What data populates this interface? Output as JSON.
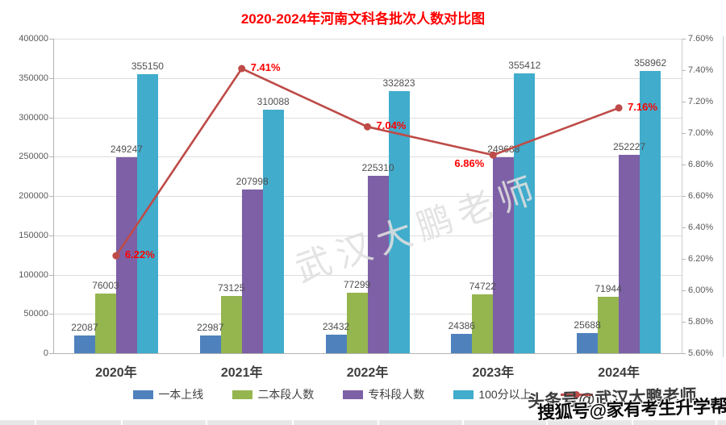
{
  "title": {
    "text": "2020-2024年河南文科各批次人数对比图",
    "color": "#ff0000"
  },
  "watermarks": {
    "center": "武汉大鹏老师",
    "overlay_top": "头条号@武汉大鹏老师",
    "overlay_bottom": "搜狐号@家有考生升学帮"
  },
  "chart_data": {
    "type": "bar",
    "subtype": "grouped-bars-with-line",
    "title": "2020-2024年河南文科各批次人数对比图",
    "categories": [
      "2020年",
      "2021年",
      "2022年",
      "2023年",
      "2024年"
    ],
    "series": [
      {
        "name": "一本上线",
        "type": "bar",
        "color": "#4f81bd",
        "axis": "left",
        "values": [
          22087,
          22987,
          23432,
          24386,
          25688
        ]
      },
      {
        "name": "二本段人数",
        "type": "bar",
        "color": "#95b54f",
        "axis": "left",
        "values": [
          76003,
          73125,
          77299,
          74722,
          71944
        ]
      },
      {
        "name": "专科段人数",
        "type": "bar",
        "color": "#7d60a6",
        "axis": "left",
        "values": [
          249247,
          207998,
          225310,
          249688,
          252227
        ]
      },
      {
        "name": "100分以上",
        "type": "bar",
        "color": "#41accc",
        "axis": "left",
        "values": [
          355150,
          310088,
          332823,
          355412,
          358962
        ]
      },
      {
        "name": "",
        "type": "line",
        "color": "#be4b48",
        "axis": "right",
        "values": [
          6.22,
          7.41,
          7.04,
          6.86,
          7.16
        ],
        "labels": [
          "6.22%",
          "7.41%",
          "7.04%",
          "6.86%",
          "7.16%"
        ],
        "label_side": [
          "right",
          "right",
          "right",
          "left",
          "right"
        ],
        "label_dy": [
          0,
          0,
          0,
          12,
          0
        ]
      }
    ],
    "left_axis": {
      "min": 0,
      "max": 400000,
      "step": 50000,
      "ticks": [
        "0",
        "50000",
        "100000",
        "150000",
        "200000",
        "250000",
        "300000",
        "350000",
        "400000"
      ]
    },
    "right_axis": {
      "min": 5.6,
      "max": 7.6,
      "step": 0.2,
      "ticks": [
        "5.60%",
        "5.80%",
        "6.00%",
        "6.20%",
        "6.40%",
        "6.60%",
        "6.80%",
        "7.00%",
        "7.20%",
        "7.40%",
        "7.60%"
      ]
    },
    "grid": true,
    "legend_position": "bottom",
    "value_labels_shown": true
  }
}
